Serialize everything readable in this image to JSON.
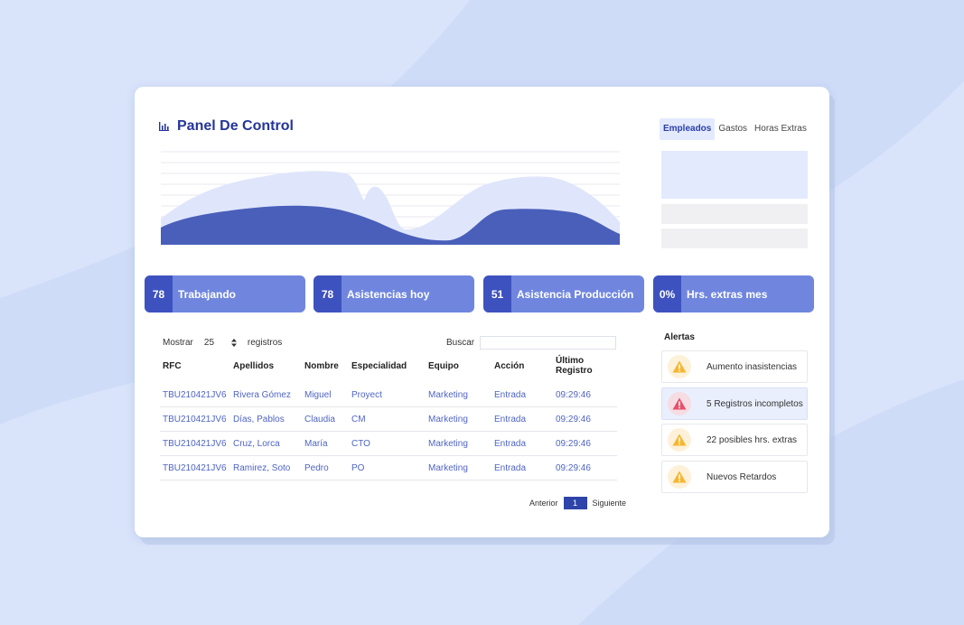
{
  "header": {
    "title": "Panel De Control",
    "icon": "bar-chart-icon"
  },
  "tabs": [
    {
      "label": "Empleados",
      "active": true
    },
    {
      "label": "Gastos",
      "active": false
    },
    {
      "label": "Horas Extras",
      "active": false
    }
  ],
  "stats": [
    {
      "value": "78",
      "label": "Trabajando"
    },
    {
      "value": "78",
      "label": "Asistencias hoy"
    },
    {
      "value": "51",
      "label": "Asistencia Producción"
    },
    {
      "value": "0%",
      "label": "Hrs. extras mes"
    }
  ],
  "table": {
    "show_label": "Mostrar",
    "page_size": "25",
    "records_label": "registros",
    "search_label": "Buscar",
    "search_value": "",
    "columns": [
      "RFC",
      "Apellidos",
      "Nombre",
      "Especialidad",
      "Equipo",
      "Acción",
      "Último Registro"
    ],
    "rows": [
      [
        "TBU210421JV6",
        "Rivera Gómez",
        "Miguel",
        "Proyect",
        "Marketing",
        "Entrada",
        "09:29:46"
      ],
      [
        "TBU210421JV6",
        "Días, Pablos",
        "Claudia",
        "CM",
        "Marketing",
        "Entrada",
        "09:29:46"
      ],
      [
        "TBU210421JV6",
        "Cruz, Lorca",
        "María",
        "CTO",
        "Marketing",
        "Entrada",
        "09:29:46"
      ],
      [
        "TBU210421JV6",
        "Ramirez, Soto",
        "Pedro",
        "PO",
        "Marketing",
        "Entrada",
        "09:29:46"
      ]
    ]
  },
  "pagination": {
    "prev": "Anterior",
    "current": "1",
    "next": "Siguiente"
  },
  "alerts": {
    "title": "Alertas",
    "items": [
      {
        "text": "Aumento inasistencias",
        "severity": "warning",
        "icon": "warning-icon",
        "highlighted": false
      },
      {
        "text": "5 Registros incompletos",
        "severity": "error",
        "icon": "warning-icon",
        "highlighted": true
      },
      {
        "text": "22 posibles hrs. extras",
        "severity": "warning",
        "icon": "warning-icon",
        "highlighted": false
      },
      {
        "text": "Nuevos Retardos",
        "severity": "warning",
        "icon": "warning-icon",
        "highlighted": false
      }
    ]
  },
  "colors": {
    "accent": "#25359a",
    "stat_dark": "#3e52bf",
    "stat_light": "#7086de",
    "chart_front": "#4a5fba",
    "chart_back": "#dfe6fb",
    "warning": "#f5b731",
    "error": "#e5506a"
  }
}
